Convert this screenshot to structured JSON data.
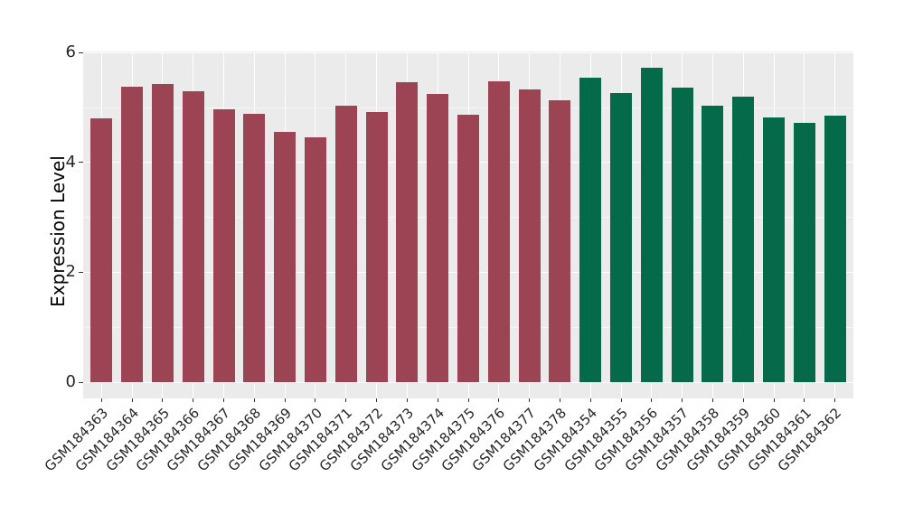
{
  "chart_data": {
    "type": "bar",
    "title": "",
    "xlabel": "",
    "ylabel": "Expression Level",
    "ylim": [
      0,
      6
    ],
    "yticks_major": [
      0,
      2,
      4,
      6
    ],
    "yticks_minor": [
      1,
      3,
      5
    ],
    "grid": "white major and minor gridlines on grey panel",
    "legend_position": "none",
    "panel_background": "#EBEBEB",
    "grid_color": "#FFFFFF",
    "tick_color": "#333333",
    "categories": [
      "GSM184363",
      "GSM184364",
      "GSM184365",
      "GSM184366",
      "GSM184367",
      "GSM184368",
      "GSM184369",
      "GSM184370",
      "GSM184371",
      "GSM184372",
      "GSM184373",
      "GSM184374",
      "GSM184375",
      "GSM184376",
      "GSM184377",
      "GSM184378",
      "GSM184354",
      "GSM184355",
      "GSM184356",
      "GSM184357",
      "GSM184358",
      "GSM184359",
      "GSM184360",
      "GSM184361",
      "GSM184362"
    ],
    "values": [
      4.8,
      5.38,
      5.42,
      5.3,
      4.96,
      4.88,
      4.56,
      4.45,
      5.04,
      4.92,
      5.46,
      5.24,
      4.87,
      5.48,
      5.33,
      5.13,
      5.55,
      5.26,
      5.73,
      5.36,
      5.03,
      5.2,
      4.82,
      4.72,
      4.85
    ],
    "group_of_bar": [
      0,
      0,
      0,
      0,
      0,
      0,
      0,
      0,
      0,
      0,
      0,
      0,
      0,
      0,
      0,
      0,
      1,
      1,
      1,
      1,
      1,
      1,
      1,
      1,
      1
    ],
    "groups": [
      {
        "label": "GSM184363-GSM184378",
        "color": "#9C4453"
      },
      {
        "label": "GSM184354-GSM184362",
        "color": "#046A4A"
      }
    ]
  }
}
